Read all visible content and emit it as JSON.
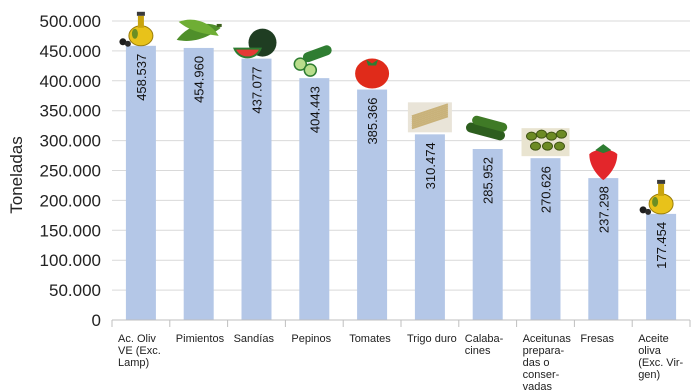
{
  "chart_data": {
    "type": "bar",
    "ylabel": "Toneladas",
    "ylim": [
      0,
      500000
    ],
    "yticks": [
      "0",
      "50.000",
      "100.000",
      "150.000",
      "200.000",
      "250.000",
      "300.000",
      "350.000",
      "400.000",
      "450.000",
      "500.000"
    ],
    "grid": true,
    "bar_color": "#b4c7e7",
    "categories": [
      [
        "Ac. Oliv",
        "VE (Exc.",
        "Lamp)"
      ],
      [
        "Pimientos"
      ],
      [
        "Sandías"
      ],
      [
        "Pepinos"
      ],
      [
        "Tomates"
      ],
      [
        "Trigo duro"
      ],
      [
        "Calaba-",
        "cines"
      ],
      [
        "Aceitunas",
        "prepara-",
        "das o",
        "conser-",
        "vadas"
      ],
      [
        "Fresas"
      ],
      [
        "Aceite",
        "oliva",
        "(Exc. Vir-",
        "gen)"
      ]
    ],
    "values": [
      458537,
      454960,
      437077,
      404443,
      385366,
      310474,
      285952,
      270626,
      237298,
      177454
    ],
    "value_labels": [
      "458.537",
      "454.960",
      "437.077",
      "404.443",
      "385.366",
      "310.474",
      "285.952",
      "270.626",
      "237.298",
      "177.454"
    ],
    "icons": [
      "olive-oil-bottle-icon",
      "green-peppers-icon",
      "watermelon-icon",
      "cucumber-icon",
      "tomato-icon",
      "durum-wheat-icon",
      "zucchini-icon",
      "olives-bowl-icon",
      "strawberry-icon",
      "olive-oil-bottle-icon"
    ]
  }
}
